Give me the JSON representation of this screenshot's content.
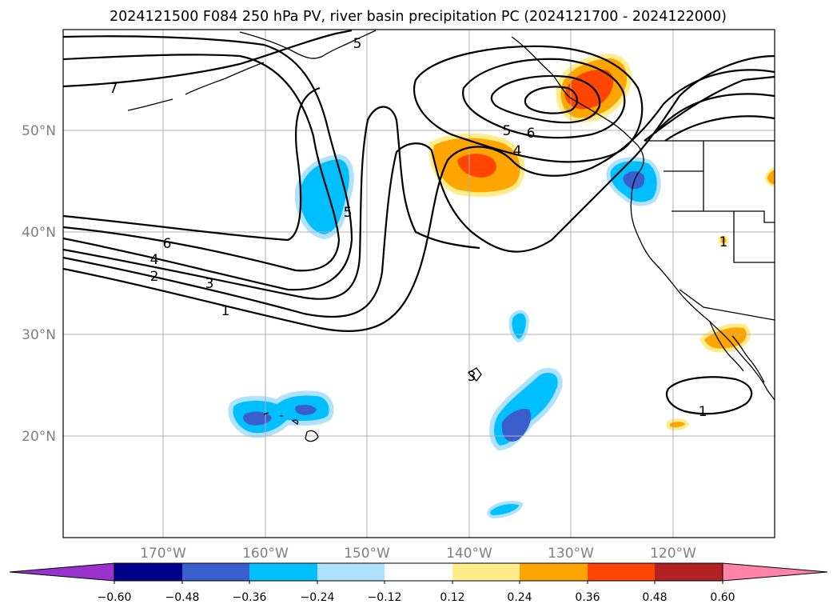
{
  "title": "2024121500 F084 250 hPa PV, river basin precipitation PC (2024121700 - 2024122000)",
  "map": {
    "lon_range": [
      -180,
      -110
    ],
    "lat_range": [
      10,
      60
    ],
    "lon_ticks": [
      "170°W",
      "160°W",
      "150°W",
      "140°W",
      "130°W",
      "120°W"
    ],
    "lat_ticks": [
      "20°N",
      "30°N",
      "40°N",
      "50°N"
    ],
    "grid": true,
    "contour_labels": [
      "7",
      "6",
      "5",
      "4",
      "3",
      "2",
      "1",
      "5",
      "6",
      "5",
      "4",
      "3",
      "1",
      "1"
    ]
  },
  "colorbar": {
    "ticks": [
      "−0.60",
      "−0.48",
      "−0.36",
      "−0.24",
      "−0.12",
      "0.12",
      "0.24",
      "0.36",
      "0.48",
      "0.60"
    ],
    "colors": [
      "#9932cc",
      "#00008b",
      "#3a5fcd",
      "#00bfff",
      "#b0e2ff",
      "#ffffff",
      "#ffec8b",
      "#ffa500",
      "#ff4500",
      "#b22222",
      "#ff82ab"
    ],
    "extend": "both"
  }
}
